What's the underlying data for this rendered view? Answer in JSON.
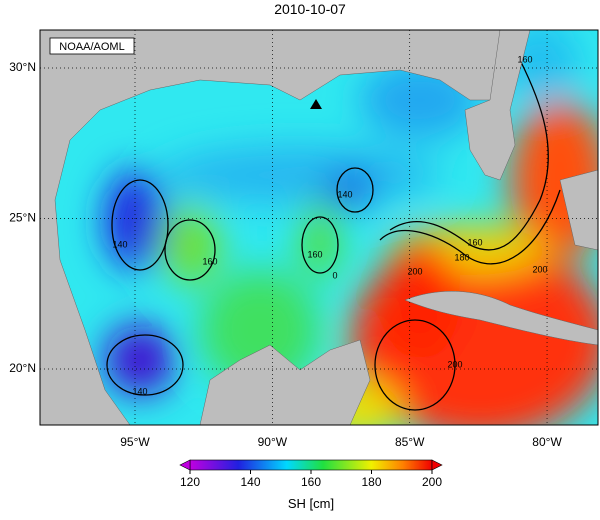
{
  "title": "2010-10-07",
  "credit": "NOAA/AOML",
  "map": {
    "lat_ticks": [
      {
        "value": 30,
        "label": "30°N"
      },
      {
        "value": 25,
        "label": "25°N"
      },
      {
        "value": 20,
        "label": "20°N"
      }
    ],
    "lon_ticks": [
      {
        "value": 95,
        "label": "95°W"
      },
      {
        "value": 90,
        "label": "90°W"
      },
      {
        "value": 85,
        "label": "85°W"
      },
      {
        "value": 80,
        "label": "80°W"
      }
    ]
  },
  "contour_labels": [
    160,
    140,
    140,
    160,
    160,
    140,
    0,
    160,
    180,
    200,
    200,
    200
  ],
  "colorbar": {
    "lim": [
      120,
      200
    ],
    "ticks": [
      120,
      140,
      160,
      180,
      200
    ],
    "label": "SH [cm]"
  }
}
